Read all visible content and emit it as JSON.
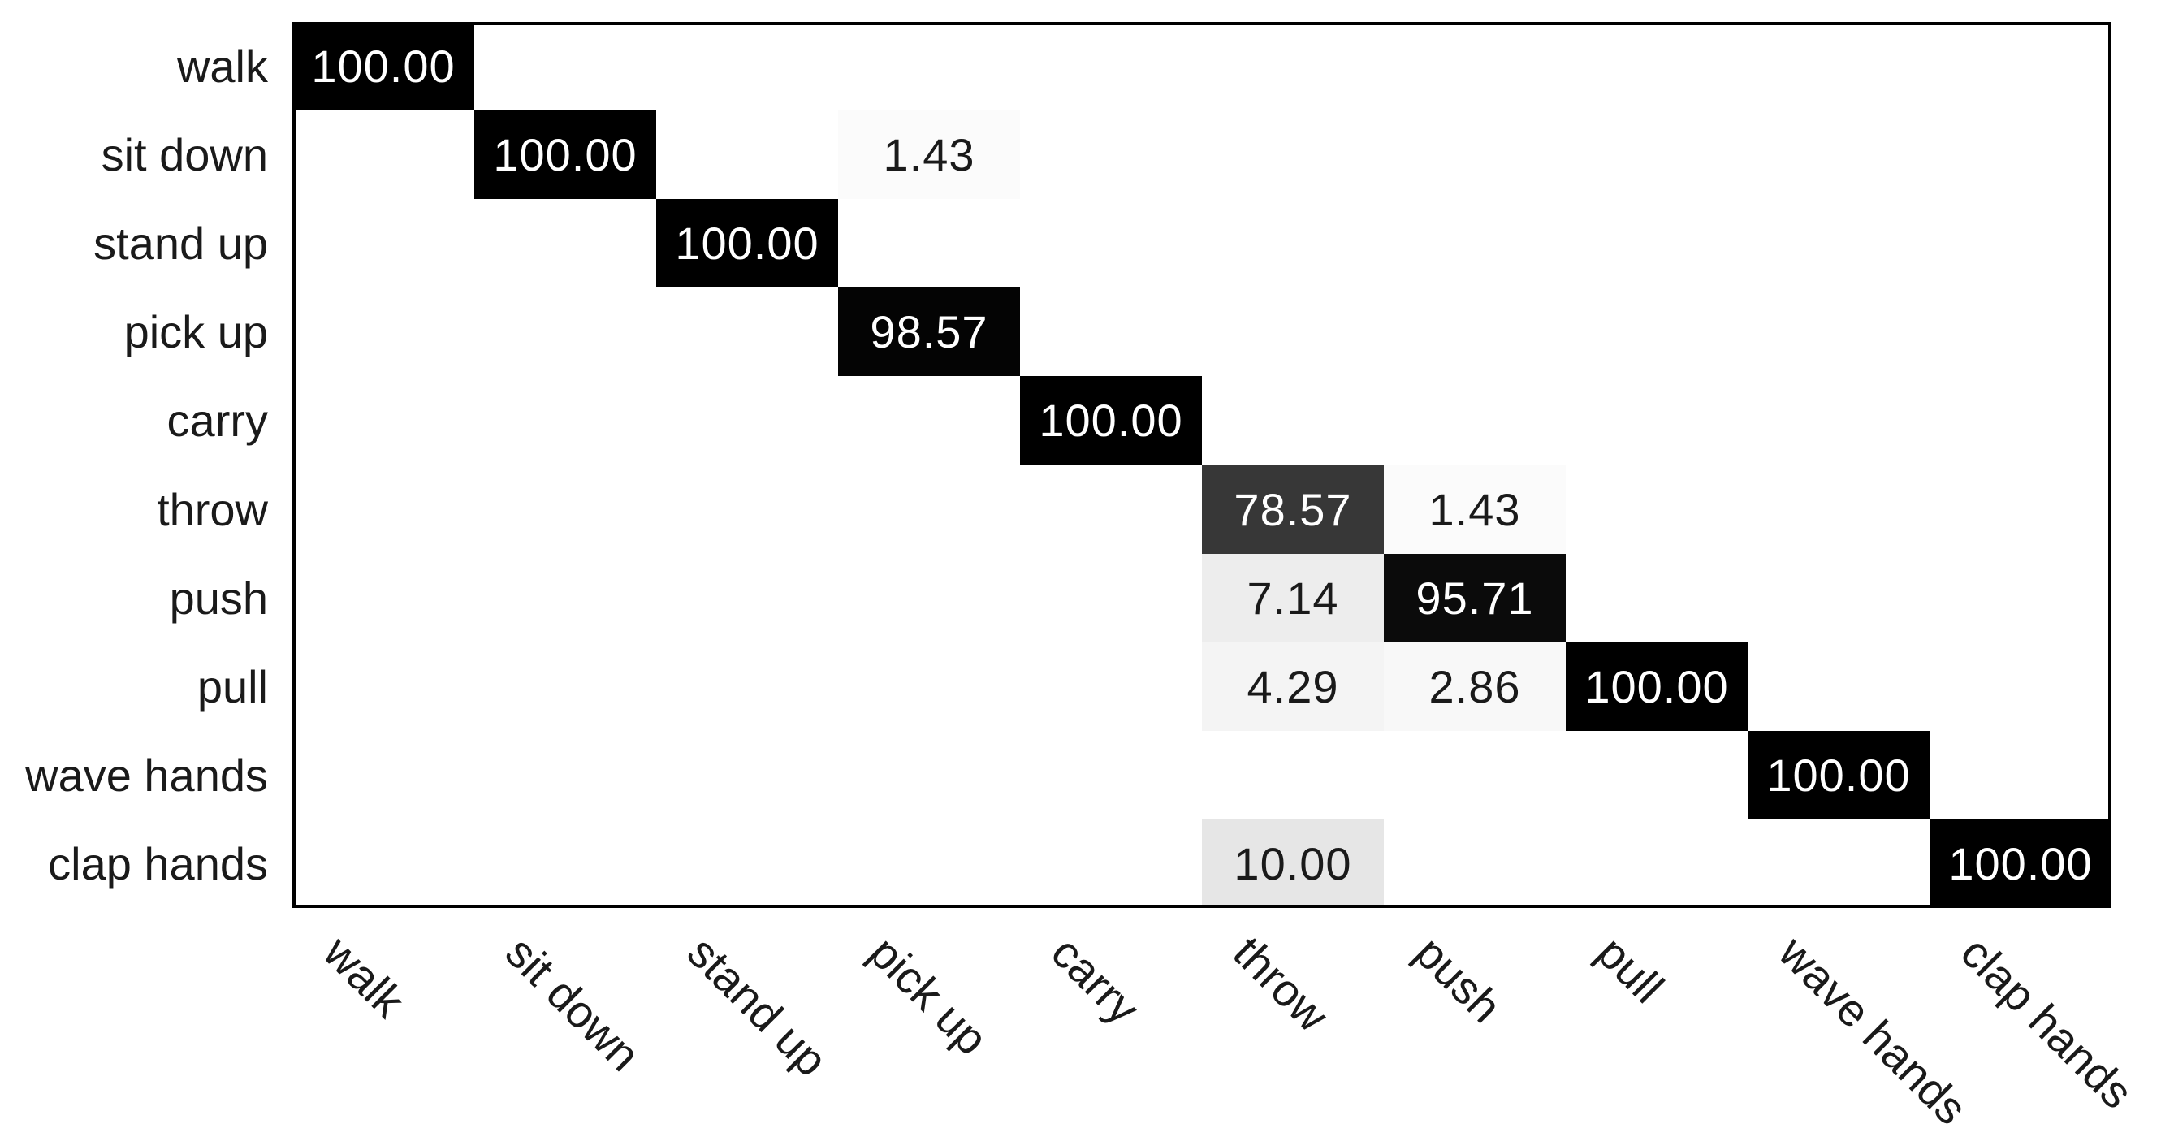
{
  "chart_data": {
    "type": "heatmap",
    "subtype": "confusion-matrix",
    "title": "",
    "xlabel": "",
    "ylabel": "",
    "grid": false,
    "legend": false,
    "normalization": "column-percent",
    "x_tick_rotation_deg": 45,
    "background": "#ffffff",
    "axis_color": "#000000",
    "label_color": "#1a1a1a",
    "row_labels": [
      "walk",
      "sit down",
      "stand up",
      "pick up",
      "carry",
      "throw",
      "push",
      "pull",
      "wave hands",
      "clap hands"
    ],
    "col_labels": [
      "walk",
      "sit down",
      "stand up",
      "pick up",
      "carry",
      "throw",
      "push",
      "pull",
      "wave hands",
      "clap hands"
    ],
    "matrix": [
      [
        100.0,
        null,
        null,
        null,
        null,
        null,
        null,
        null,
        null,
        null
      ],
      [
        null,
        100.0,
        null,
        1.43,
        null,
        null,
        null,
        null,
        null,
        null
      ],
      [
        null,
        null,
        100.0,
        null,
        null,
        null,
        null,
        null,
        null,
        null
      ],
      [
        null,
        null,
        null,
        98.57,
        null,
        null,
        null,
        null,
        null,
        null
      ],
      [
        null,
        null,
        null,
        null,
        100.0,
        null,
        null,
        null,
        null,
        null
      ],
      [
        null,
        null,
        null,
        null,
        null,
        78.57,
        1.43,
        null,
        null,
        null
      ],
      [
        null,
        null,
        null,
        null,
        null,
        7.14,
        95.71,
        null,
        null,
        null
      ],
      [
        null,
        null,
        null,
        null,
        null,
        4.29,
        2.86,
        100.0,
        null,
        null
      ],
      [
        null,
        null,
        null,
        null,
        null,
        null,
        null,
        null,
        100.0,
        null
      ],
      [
        null,
        null,
        null,
        null,
        null,
        10.0,
        null,
        null,
        null,
        100.0
      ]
    ],
    "cells": [
      {
        "row": 0,
        "col": 0,
        "value": 100.0,
        "label": "100.00",
        "bg": "#000000",
        "fg": "#ffffff"
      },
      {
        "row": 1,
        "col": 1,
        "value": 100.0,
        "label": "100.00",
        "bg": "#000000",
        "fg": "#ffffff"
      },
      {
        "row": 1,
        "col": 3,
        "value": 1.43,
        "label": "1.43",
        "bg": "#fbfbfb",
        "fg": "#1a1a1a"
      },
      {
        "row": 2,
        "col": 2,
        "value": 100.0,
        "label": "100.00",
        "bg": "#000000",
        "fg": "#ffffff"
      },
      {
        "row": 3,
        "col": 3,
        "value": 98.57,
        "label": "98.57",
        "bg": "#040404",
        "fg": "#ffffff"
      },
      {
        "row": 4,
        "col": 4,
        "value": 100.0,
        "label": "100.00",
        "bg": "#000000",
        "fg": "#ffffff"
      },
      {
        "row": 5,
        "col": 5,
        "value": 78.57,
        "label": "78.57",
        "bg": "#373737",
        "fg": "#ffffff"
      },
      {
        "row": 5,
        "col": 6,
        "value": 1.43,
        "label": "1.43",
        "bg": "#fbfbfb",
        "fg": "#1a1a1a"
      },
      {
        "row": 6,
        "col": 5,
        "value": 7.14,
        "label": "7.14",
        "bg": "#ededed",
        "fg": "#1a1a1a"
      },
      {
        "row": 6,
        "col": 6,
        "value": 95.71,
        "label": "95.71",
        "bg": "#0b0b0b",
        "fg": "#ffffff"
      },
      {
        "row": 7,
        "col": 5,
        "value": 4.29,
        "label": "4.29",
        "bg": "#f4f4f4",
        "fg": "#1a1a1a"
      },
      {
        "row": 7,
        "col": 6,
        "value": 2.86,
        "label": "2.86",
        "bg": "#f8f8f8",
        "fg": "#1a1a1a"
      },
      {
        "row": 7,
        "col": 7,
        "value": 100.0,
        "label": "100.00",
        "bg": "#000000",
        "fg": "#ffffff"
      },
      {
        "row": 8,
        "col": 8,
        "value": 100.0,
        "label": "100.00",
        "bg": "#000000",
        "fg": "#ffffff"
      },
      {
        "row": 9,
        "col": 5,
        "value": 10.0,
        "label": "10.00",
        "bg": "#e6e6e6",
        "fg": "#1a1a1a"
      },
      {
        "row": 9,
        "col": 9,
        "value": 100.0,
        "label": "100.00",
        "bg": "#000000",
        "fg": "#ffffff"
      }
    ]
  }
}
